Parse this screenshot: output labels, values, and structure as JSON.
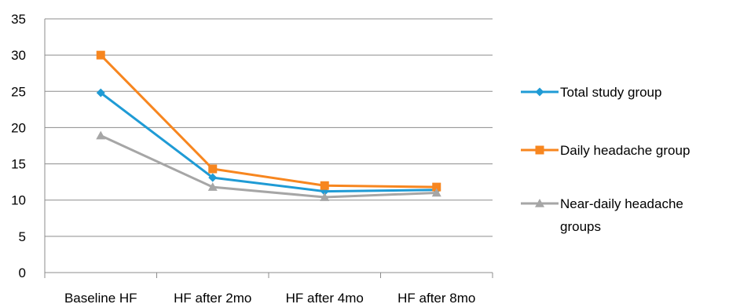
{
  "chart_data": {
    "type": "line",
    "categories": [
      "Baseline HF",
      "HF after 2mo",
      "HF after 4mo",
      "HF after 8mo"
    ],
    "series": [
      {
        "name": "Total study group",
        "values": [
          24.8,
          13.1,
          11.2,
          11.4
        ],
        "color": "#1f9bd5",
        "marker": "diamond"
      },
      {
        "name": "Daily headache group",
        "values": [
          30.0,
          14.3,
          12.0,
          11.8
        ],
        "color": "#f7861f",
        "marker": "square"
      },
      {
        "name": "Near-daily headache groups",
        "values": [
          18.9,
          11.8,
          10.4,
          11.0
        ],
        "color": "#a6a6a6",
        "marker": "triangle"
      }
    ],
    "ylim": [
      0,
      35
    ],
    "yticks": [
      0,
      5,
      10,
      15,
      20,
      25,
      30,
      35
    ],
    "grid": "horizontal",
    "legend_position": "right",
    "title": "",
    "xlabel": "",
    "ylabel": ""
  }
}
